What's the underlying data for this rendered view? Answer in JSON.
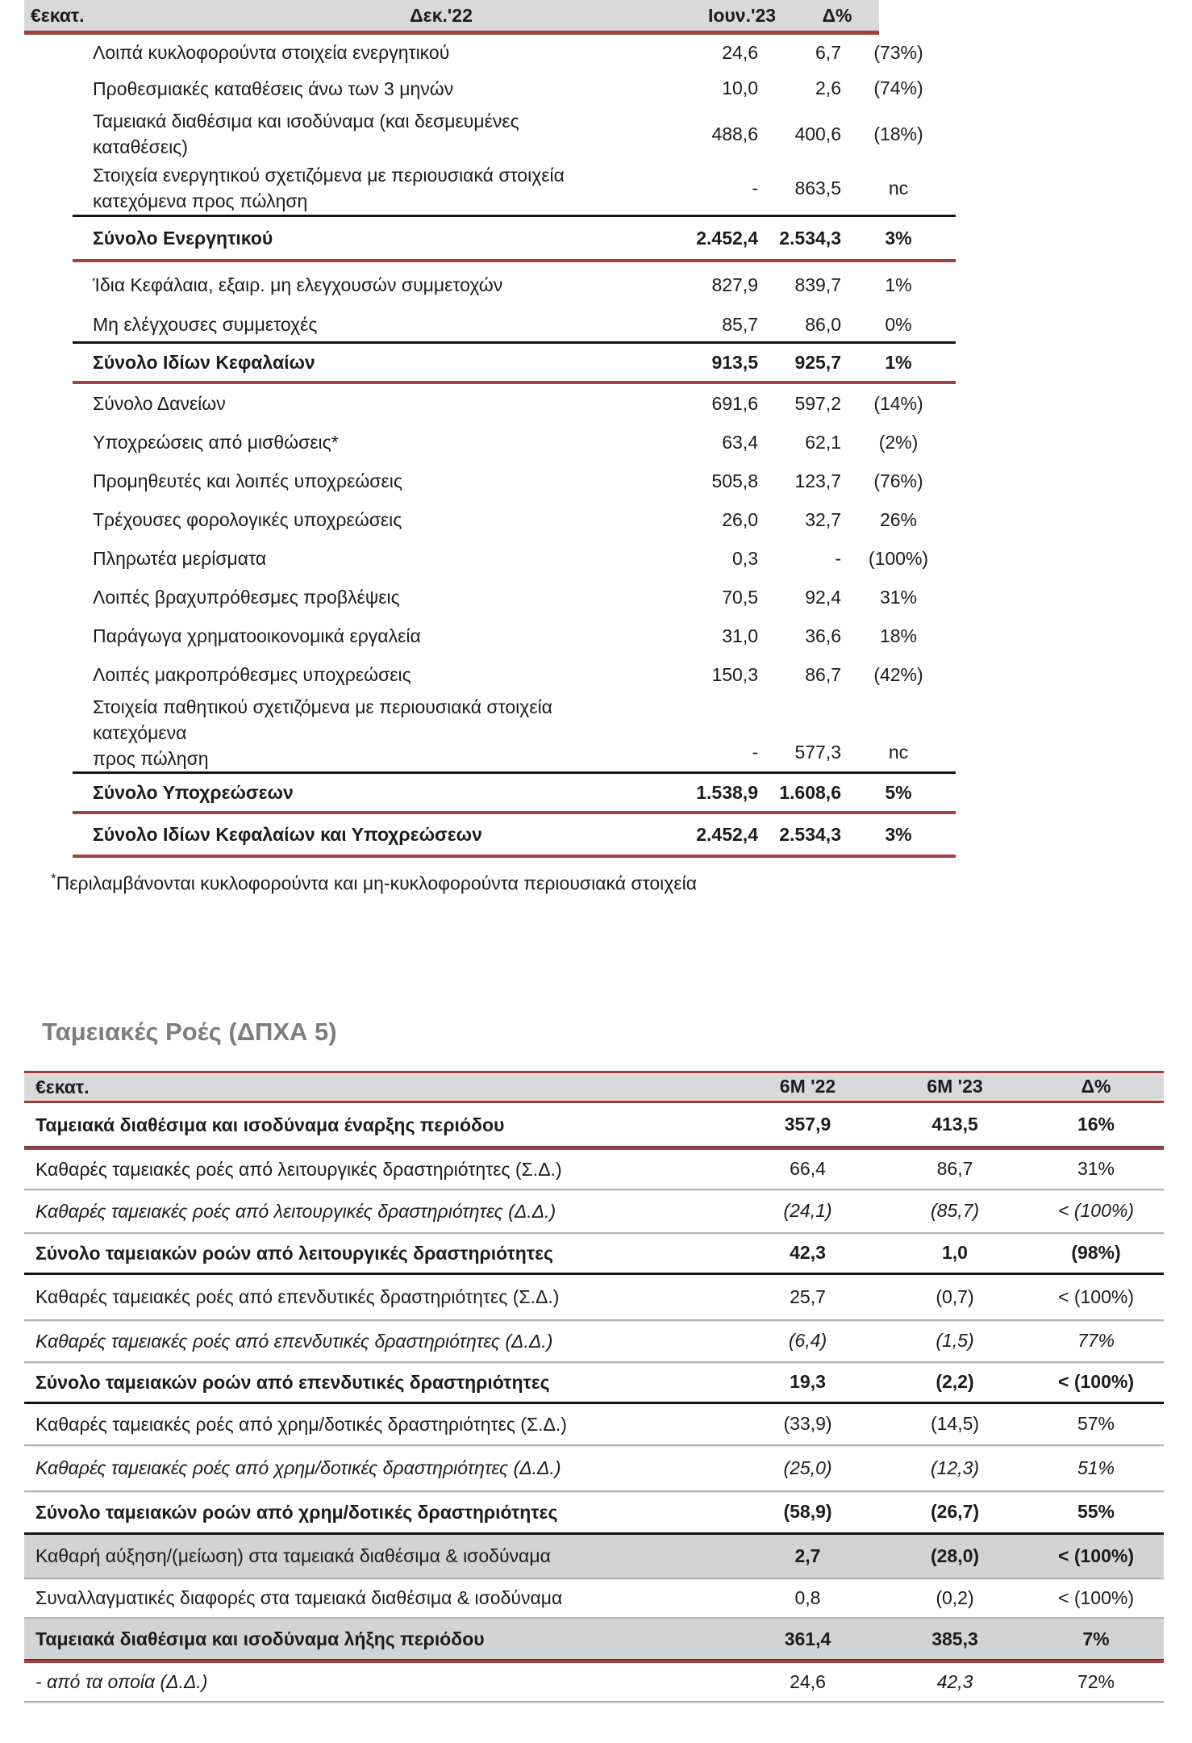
{
  "balance_table": {
    "unit_label": "€εκατ.",
    "col_dec": "Δεκ.'22",
    "col_jun": "Ιουν.'23",
    "col_delta": "Δ%",
    "rows": [
      {
        "label": "Λοιπά κυκλοφορούντα στοιχεία ενεργητικού",
        "v1": "24,6",
        "v2": "6,7",
        "pct": "(73%)",
        "em": ""
      },
      {
        "label": "Προθεσμιακές καταθέσεις άνω των 3 μηνών",
        "v1": "10,0",
        "v2": "2,6",
        "pct": "(74%)",
        "em": ""
      },
      {
        "label": "Ταμειακά διαθέσιμα και ισοδύναμα (και δεσμευμένες\nκαταθέσεις)",
        "v1": "488,6",
        "v2": "400,6",
        "pct": "(18%)",
        "em": ""
      },
      {
        "label": "Στοιχεία ενεργητικού σχετιζόμενα με περιουσιακά στοιχεία\nκατεχόμενα προς πώληση",
        "v1": "-",
        "v2": "863,5",
        "pct": "nc",
        "em": ""
      },
      {
        "label": "Σύνολο Ενεργητικού",
        "v1": "2.452,4",
        "v2": "2.534,3",
        "pct": "3%",
        "em": "total"
      },
      {
        "label": "Ίδια Κεφάλαια, εξαιρ. μη ελεγχουσών συμμετοχών",
        "v1": "827,9",
        "v2": "839,7",
        "pct": "1%",
        "em": ""
      },
      {
        "label": "Μη ελέγχουσες συμμετοχές",
        "v1": "85,7",
        "v2": "86,0",
        "pct": "0%",
        "em": ""
      },
      {
        "label": "Σύνολο Ιδίων Κεφαλαίων",
        "v1": "913,5",
        "v2": "925,7",
        "pct": "1%",
        "em": "total"
      },
      {
        "label": "Σύνολο Δανείων",
        "v1": "691,6",
        "v2": "597,2",
        "pct": "(14%)",
        "em": ""
      },
      {
        "label": "Υποχρεώσεις από μισθώσεις*",
        "v1": "63,4",
        "v2": "62,1",
        "pct": "(2%)",
        "em": ""
      },
      {
        "label": "Προμηθευτές και λοιπές υποχρεώσεις",
        "v1": "505,8",
        "v2": "123,7",
        "pct": "(76%)",
        "em": ""
      },
      {
        "label": "Τρέχουσες φορολογικές υποχρεώσεις",
        "v1": "26,0",
        "v2": "32,7",
        "pct": "26%",
        "em": ""
      },
      {
        "label": "Πληρωτέα μερίσματα",
        "v1": "0,3",
        "v2": "-",
        "pct": "(100%)",
        "em": ""
      },
      {
        "label": "Λοιπές βραχυπρόθεσμες προβλέψεις",
        "v1": "70,5",
        "v2": "92,4",
        "pct": "31%",
        "em": ""
      },
      {
        "label": "Παράγωγα χρηματοοικονομικά εργαλεία",
        "v1": "31,0",
        "v2": "36,6",
        "pct": "18%",
        "em": ""
      },
      {
        "label": "Λοιπές μακροπρόθεσμες υποχρεώσεις",
        "v1": "150,3",
        "v2": "86,7",
        "pct": "(42%)",
        "em": ""
      },
      {
        "label": "Στοιχεία παθητικού σχετιζόμενα με περιουσιακά στοιχεία\nκατεχόμενα\nπρος πώληση",
        "v1": "-",
        "v2": "577,3",
        "pct": "nc",
        "em": ""
      },
      {
        "label": "Σύνολο Υποχρεώσεων",
        "v1": "1.538,9",
        "v2": "1.608,6",
        "pct": "5%",
        "em": "total"
      },
      {
        "label": "Σύνολο Ιδίων Κεφαλαίων και Υποχρεώσεων",
        "v1": "2.452,4",
        "v2": "2.534,3",
        "pct": "3%",
        "em": "total"
      }
    ],
    "footnote_star": "*",
    "footnote_text": "Περιλαμβάνονται κυκλοφορούντα και μη-κυκλοφορούντα περιουσιακά στοιχεία"
  },
  "cashflow_table": {
    "title": "Ταμειακές Ροές (ΔΠΧΑ 5)",
    "unit_label": "€εκατ.",
    "col_h1": "6M '22",
    "col_h2": "6M '23",
    "col_delta": "Δ%",
    "rows": [
      {
        "label": "Ταμειακά διαθέσιμα και ισοδύναμα έναρξης περιόδου",
        "v1": "357,9",
        "v2": "413,5",
        "pct": "16%",
        "em": "total",
        "highlight": false
      },
      {
        "label": "Καθαρές ταμειακές ροές από λειτουργικές δραστηριότητες  (Σ.Δ.)",
        "v1": "66,4",
        "v2": "86,7",
        "pct": "31%",
        "em": "",
        "highlight": false
      },
      {
        "label": "Καθαρές ταμειακές ροές από λειτουργικές δραστηριότητες  (Δ.Δ.)",
        "v1": "(24,1)",
        "v2": "(85,7)",
        "pct": "< (100%)",
        "em": "italic",
        "highlight": false
      },
      {
        "label": "Σύνολο ταμειακών ροών από λειτουργικές δραστηριότητες",
        "v1": "42,3",
        "v2": "1,0",
        "pct": "(98%)",
        "em": "total",
        "highlight": false
      },
      {
        "label": "Καθαρές ταμειακές ροές από επενδυτικές δραστηριότητες  (Σ.Δ.)",
        "v1": "25,7",
        "v2": "(0,7)",
        "pct": "< (100%)",
        "em": "",
        "highlight": false
      },
      {
        "label": "Καθαρές ταμειακές ροές από επενδυτικές δραστηριότητες  (Δ.Δ.)",
        "v1": "(6,4)",
        "v2": "(1,5)",
        "pct": "77%",
        "em": "italic",
        "highlight": false
      },
      {
        "label": "Σύνολο ταμειακών ροών από επενδυτικές δραστηριότητες",
        "v1": "19,3",
        "v2": "(2,2)",
        "pct": "< (100%)",
        "em": "total",
        "highlight": false
      },
      {
        "label": "Καθαρές ταμειακές ροές από χρημ/δοτικές δραστηριότητες  (Σ.Δ.)",
        "v1": "(33,9)",
        "v2": "(14,5)",
        "pct": "57%",
        "em": "",
        "highlight": false
      },
      {
        "label": "Καθαρές ταμειακές ροές από χρημ/δοτικές δραστηριότητες  (Δ.Δ.)",
        "v1": "(25,0)",
        "v2": "(12,3)",
        "pct": "51%",
        "em": "italic",
        "highlight": false
      },
      {
        "label": "Σύνολο ταμειακών ροών από χρημ/δοτικές δραστηριότητες",
        "v1": "(58,9)",
        "v2": "(26,7)",
        "pct": "55%",
        "em": "total",
        "highlight": false
      },
      {
        "label": "Καθαρή αύξηση/(μείωση) στα ταμειακά διαθέσιμα & ισοδύναμα",
        "v1": "2,7",
        "v2": "(28,0)",
        "pct": "< (100%)",
        "em": "values-bold",
        "highlight": true
      },
      {
        "label": "Συναλλαγματικές διαφορές στα ταμειακά διαθέσιμα & ισοδύναμα",
        "v1": "0,8",
        "v2": "(0,2)",
        "pct": "< (100%)",
        "em": "",
        "highlight": false
      },
      {
        "label": "Ταμειακά διαθέσιμα και ισοδύναμα λήξης περιόδου",
        "v1": "361,4",
        "v2": "385,3",
        "pct": "7%",
        "em": "total",
        "highlight": true
      },
      {
        "label": "- από τα οποία  (Δ.Δ.)",
        "v1": "24,6",
        "v2": "42,3",
        "pct": "72%",
        "em": "italic-mixed",
        "highlight": false
      }
    ]
  }
}
